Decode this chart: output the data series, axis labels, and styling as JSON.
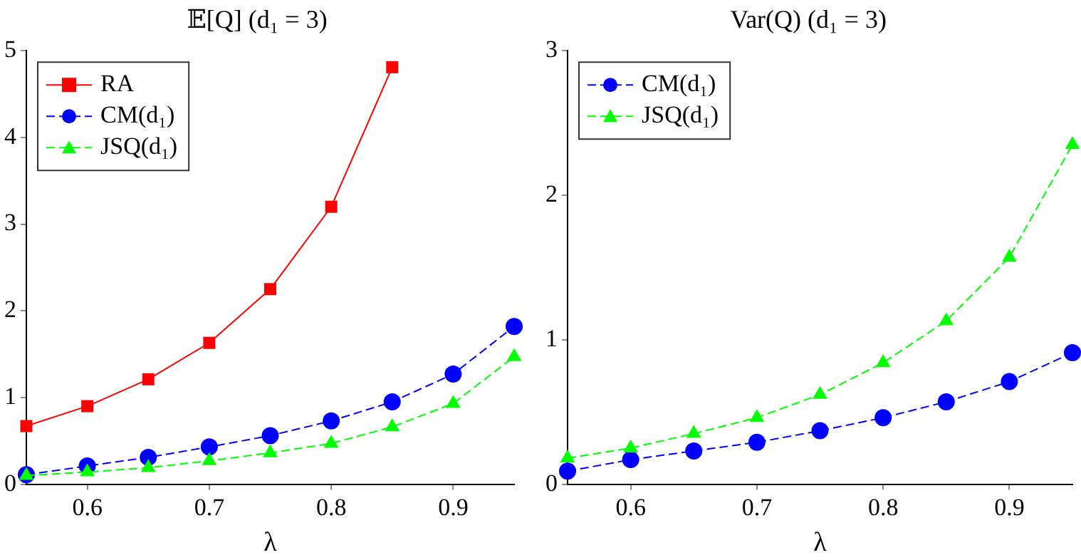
{
  "chart_data": [
    {
      "type": "line",
      "title": "𝔼[Q] (d₁ = 3)",
      "xlabel": "λ",
      "x": [
        0.55,
        0.6,
        0.65,
        0.7,
        0.75,
        0.8,
        0.85,
        0.9,
        0.95
      ],
      "xlim": [
        0.55,
        0.95
      ],
      "xticks": [
        0.6,
        0.7,
        0.8,
        0.9
      ],
      "ylim": [
        0,
        5
      ],
      "yticks": [
        0,
        1,
        2,
        3,
        4,
        5
      ],
      "grid": false,
      "legend": "top left",
      "series": [
        {
          "name": "RA",
          "color": "#ff0000",
          "marker": "square",
          "line_style": "solid",
          "values": [
            0.67,
            0.9,
            1.21,
            1.63,
            2.25,
            3.2,
            4.81,
            null,
            null
          ]
        },
        {
          "name": "CM(d₁)",
          "color": "#0000ff",
          "marker": "circle",
          "line_style": "dashed",
          "values": [
            0.11,
            0.21,
            0.31,
            0.43,
            0.56,
            0.73,
            0.95,
            1.27,
            1.82
          ]
        },
        {
          "name": "JSQ(d₁)",
          "color": "#00ff00",
          "marker": "triangle",
          "line_style": "dashed",
          "values": [
            0.1,
            0.14,
            0.19,
            0.27,
            0.36,
            0.47,
            0.66,
            0.93,
            1.47
          ]
        }
      ]
    },
    {
      "type": "line",
      "title": "Var(Q) (d₁ = 3)",
      "xlabel": "λ",
      "x": [
        0.55,
        0.6,
        0.65,
        0.7,
        0.75,
        0.8,
        0.85,
        0.9,
        0.95
      ],
      "xlim": [
        0.55,
        0.95
      ],
      "xticks": [
        0.6,
        0.7,
        0.8,
        0.9
      ],
      "ylim": [
        0,
        3
      ],
      "yticks": [
        0,
        1,
        2,
        3
      ],
      "grid": false,
      "legend": "top left",
      "series": [
        {
          "name": "CM(d₁)",
          "color": "#0000ff",
          "marker": "circle",
          "line_style": "dashed",
          "values": [
            0.09,
            0.17,
            0.23,
            0.29,
            0.37,
            0.46,
            0.57,
            0.71,
            0.91
          ]
        },
        {
          "name": "JSQ(d₁)",
          "color": "#00ff00",
          "marker": "triangle",
          "line_style": "dashed",
          "values": [
            0.18,
            0.25,
            0.35,
            0.46,
            0.62,
            0.84,
            1.13,
            1.57,
            2.35
          ]
        }
      ]
    }
  ]
}
